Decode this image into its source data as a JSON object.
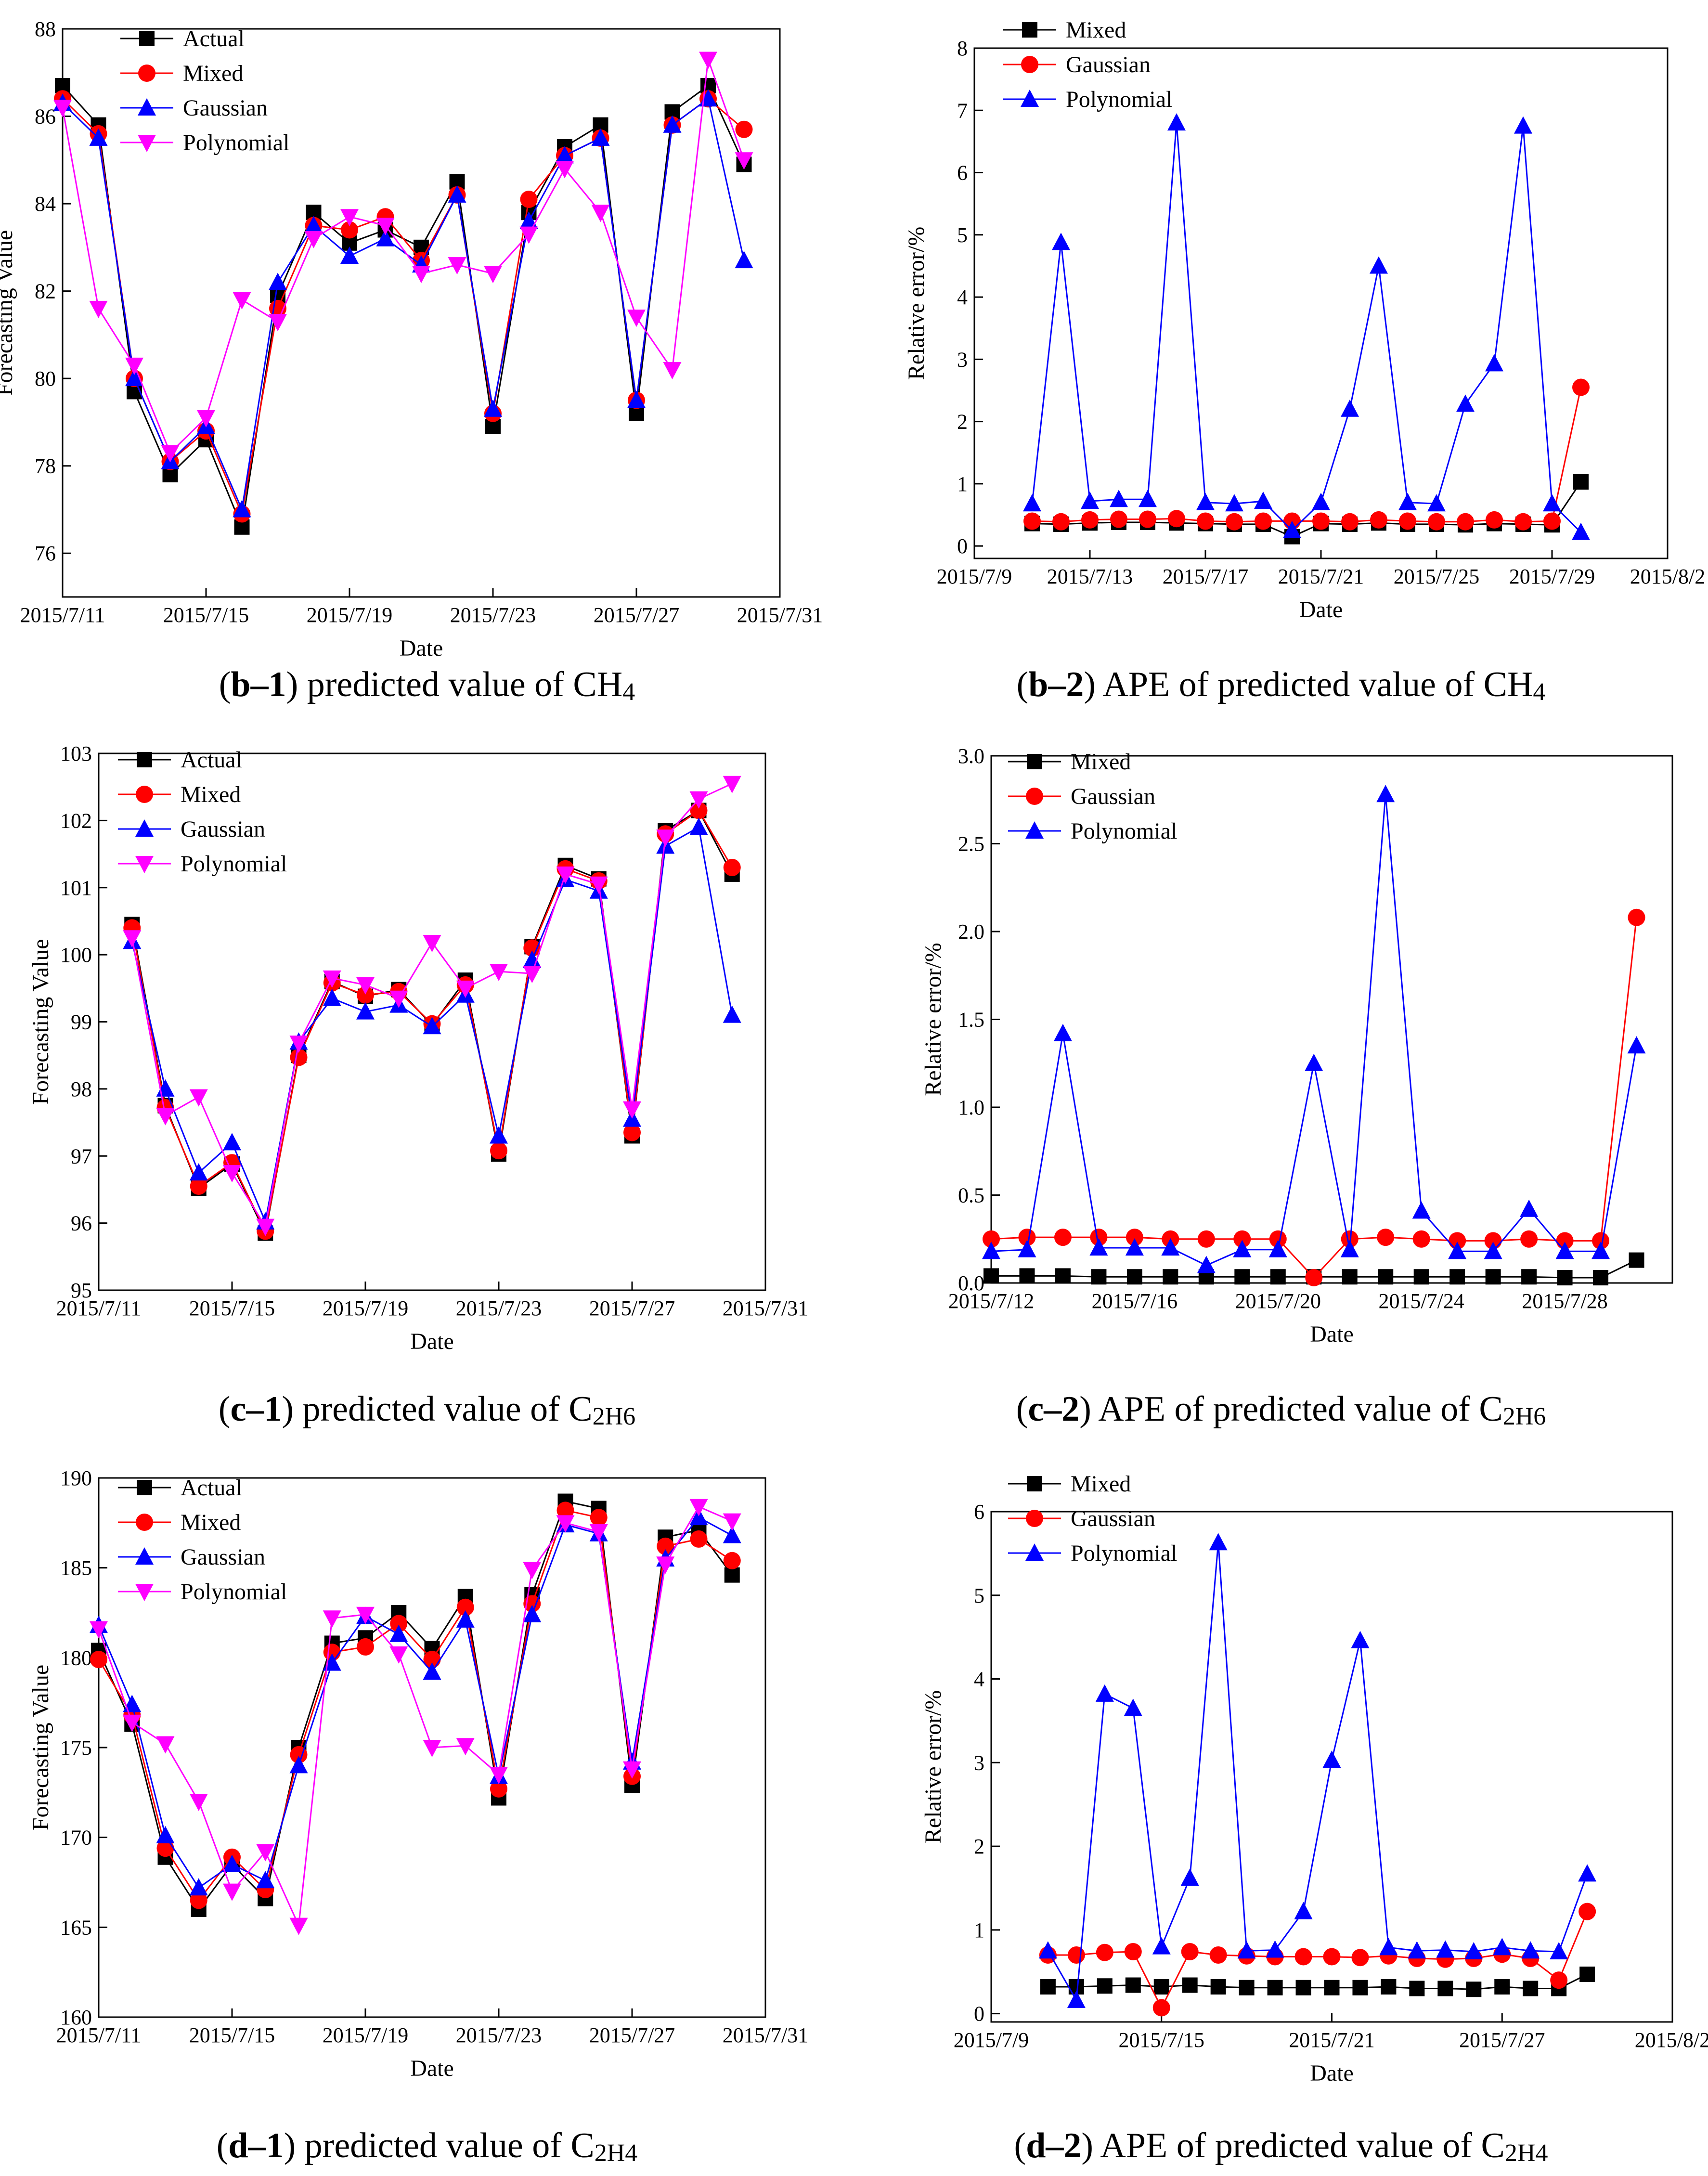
{
  "chart_data": [
    {
      "id": "b1",
      "type": "line",
      "caption_letter": "b–1",
      "caption_text": ") predicted value of CH",
      "caption_sub": "4",
      "xlabel": "Date",
      "ylabel": "Forecasting Value",
      "xlim": [
        "2015-07-11",
        "2015-07-31"
      ],
      "xticks": [
        "2015/7/11",
        "2015/7/15",
        "2015/7/19",
        "2015/7/23",
        "2015/7/27",
        "2015/7/31"
      ],
      "ylim": [
        75,
        88
      ],
      "yticks": [
        "76",
        "78",
        "80",
        "82",
        "84",
        "86",
        "88"
      ],
      "x": [
        "2015-07-11",
        "2015-07-12",
        "2015-07-13",
        "2015-07-14",
        "2015-07-15",
        "2015-07-16",
        "2015-07-17",
        "2015-07-18",
        "2015-07-19",
        "2015-07-20",
        "2015-07-21",
        "2015-07-22",
        "2015-07-23",
        "2015-07-24",
        "2015-07-25",
        "2015-07-26",
        "2015-07-27",
        "2015-07-28",
        "2015-07-29",
        "2015-07-30"
      ],
      "series": [
        {
          "name": "Actual",
          "color": "#000000",
          "marker": "square",
          "values": [
            86.7,
            85.8,
            79.7,
            77.8,
            78.6,
            76.6,
            81.9,
            83.8,
            83.1,
            83.4,
            83.0,
            84.5,
            78.9,
            83.8,
            85.3,
            85.8,
            79.2,
            86.1,
            86.7,
            84.9
          ]
        },
        {
          "name": "Mixed",
          "color": "#ff0000",
          "marker": "circle",
          "values": [
            86.4,
            85.6,
            80.0,
            78.1,
            78.8,
            76.9,
            81.6,
            83.5,
            83.4,
            83.7,
            82.7,
            84.2,
            79.2,
            84.1,
            85.1,
            85.5,
            79.5,
            85.8,
            86.4,
            85.7
          ]
        },
        {
          "name": "Gaussian",
          "color": "#0000ff",
          "marker": "triangle-up",
          "values": [
            86.3,
            85.5,
            80.0,
            78.1,
            78.9,
            77.0,
            82.2,
            83.5,
            82.8,
            83.2,
            82.6,
            84.2,
            79.3,
            83.6,
            85.1,
            85.5,
            79.5,
            85.8,
            86.4,
            82.7
          ]
        },
        {
          "name": "Polynomial",
          "color": "#ff00ff",
          "marker": "triangle-down",
          "values": [
            86.2,
            81.6,
            80.3,
            78.3,
            79.1,
            81.8,
            81.3,
            83.2,
            83.7,
            83.5,
            82.4,
            82.6,
            82.4,
            83.3,
            84.8,
            83.8,
            81.4,
            80.2,
            87.3,
            85.0
          ]
        }
      ],
      "legend_position": "top-left"
    },
    {
      "id": "b2",
      "type": "line",
      "caption_letter": "b–2",
      "caption_text": ") APE of predicted value of CH",
      "caption_sub": "4",
      "xlabel": "Date",
      "ylabel": "Relative error/%",
      "xlim": [
        "2015-07-09",
        "2015-08-02"
      ],
      "xticks": [
        "2015/7/9",
        "2015/7/13",
        "2015/7/17",
        "2015/7/21",
        "2015/7/25",
        "2015/7/29",
        "2015/8/2"
      ],
      "ylim": [
        -0.2,
        8
      ],
      "yticks": [
        "0",
        "1",
        "2",
        "3",
        "4",
        "5",
        "6",
        "7",
        "8"
      ],
      "x": [
        "2015-07-11",
        "2015-07-12",
        "2015-07-13",
        "2015-07-14",
        "2015-07-15",
        "2015-07-16",
        "2015-07-17",
        "2015-07-18",
        "2015-07-19",
        "2015-07-20",
        "2015-07-21",
        "2015-07-22",
        "2015-07-23",
        "2015-07-24",
        "2015-07-25",
        "2015-07-26",
        "2015-07-27",
        "2015-07-28",
        "2015-07-29",
        "2015-07-30"
      ],
      "series": [
        {
          "name": "Mixed",
          "color": "#000000",
          "marker": "square",
          "values": [
            0.36,
            0.35,
            0.37,
            0.38,
            0.38,
            0.37,
            0.36,
            0.35,
            0.35,
            0.15,
            0.36,
            0.35,
            0.37,
            0.35,
            0.35,
            0.34,
            0.36,
            0.35,
            0.34,
            1.03
          ]
        },
        {
          "name": "Gaussian",
          "color": "#ff0000",
          "marker": "circle",
          "values": [
            0.4,
            0.39,
            0.42,
            0.43,
            0.43,
            0.44,
            0.4,
            0.39,
            0.4,
            0.4,
            0.4,
            0.39,
            0.42,
            0.4,
            0.39,
            0.39,
            0.42,
            0.39,
            0.4,
            2.55
          ]
        },
        {
          "name": "Polynomial",
          "color": "#0000ff",
          "marker": "triangle-up",
          "values": [
            0.68,
            4.88,
            0.72,
            0.75,
            0.75,
            6.8,
            0.7,
            0.68,
            0.72,
            0.25,
            0.7,
            2.2,
            4.5,
            0.7,
            0.68,
            2.28,
            2.93,
            6.75,
            0.68,
            0.22
          ]
        }
      ],
      "legend_position": "top-left"
    },
    {
      "id": "c1",
      "type": "line",
      "caption_letter": "c–1",
      "caption_text": ") predicted value of C",
      "caption_sub": "2H6",
      "xlabel": "Date",
      "ylabel": "Forecasting Value",
      "xlim": [
        "2015-07-11",
        "2015-07-31"
      ],
      "xticks": [
        "2015/7/11",
        "2015/7/15",
        "2015/7/19",
        "2015/7/23",
        "2015/7/27",
        "2015/7/31"
      ],
      "ylim": [
        95,
        103
      ],
      "yticks": [
        "95",
        "96",
        "97",
        "98",
        "99",
        "100",
        "101",
        "102",
        "103"
      ],
      "x": [
        "2015-07-12",
        "2015-07-13",
        "2015-07-14",
        "2015-07-15",
        "2015-07-16",
        "2015-07-17",
        "2015-07-18",
        "2015-07-19",
        "2015-07-20",
        "2015-07-21",
        "2015-07-22",
        "2015-07-23",
        "2015-07-24",
        "2015-07-25",
        "2015-07-26",
        "2015-07-27",
        "2015-07-28",
        "2015-07-29",
        "2015-07-30"
      ],
      "series": [
        {
          "name": "Actual",
          "color": "#000000",
          "marker": "square",
          "values": [
            100.45,
            97.75,
            96.52,
            96.88,
            95.85,
            98.5,
            99.6,
            99.38,
            99.48,
            98.95,
            99.62,
            97.03,
            100.12,
            101.33,
            101.13,
            97.3,
            101.85,
            102.15,
            101.2
          ]
        },
        {
          "name": "Mixed",
          "color": "#ff0000",
          "marker": "circle",
          "values": [
            100.4,
            97.72,
            96.55,
            96.9,
            95.88,
            98.47,
            99.58,
            99.4,
            99.45,
            98.97,
            99.55,
            97.08,
            100.1,
            101.28,
            101.1,
            97.35,
            101.8,
            102.15,
            101.3
          ]
        },
        {
          "name": "Gaussian",
          "color": "#0000ff",
          "marker": "triangle-up",
          "values": [
            100.2,
            98.0,
            96.75,
            97.2,
            96.02,
            98.7,
            99.35,
            99.15,
            99.25,
            98.93,
            99.4,
            97.3,
            99.92,
            101.12,
            100.95,
            97.55,
            101.62,
            101.9,
            99.1
          ]
        },
        {
          "name": "Polynomial",
          "color": "#ff00ff",
          "marker": "triangle-down",
          "values": [
            100.25,
            97.6,
            97.88,
            96.75,
            95.95,
            98.68,
            99.65,
            99.55,
            99.35,
            100.18,
            99.5,
            99.75,
            99.72,
            101.2,
            101.05,
            97.7,
            101.75,
            102.32,
            102.55
          ]
        }
      ],
      "legend_position": "top-left"
    },
    {
      "id": "c2",
      "type": "line",
      "caption_letter": "c–2",
      "caption_text": ") APE of predicted value of C",
      "caption_sub": "2H6",
      "xlabel": "Date",
      "ylabel": "Relative error/%",
      "xlim": [
        "2015-07-12",
        "2015-07-31"
      ],
      "xticks": [
        "2015/7/12",
        "2015/7/16",
        "2015/7/20",
        "2015/7/24",
        "2015/7/28"
      ],
      "ylim": [
        0,
        3
      ],
      "yticks": [
        "0.0",
        "0.5",
        "1.0",
        "1.5",
        "2.0",
        "2.5",
        "3.0"
      ],
      "x": [
        "2015-07-12",
        "2015-07-13",
        "2015-07-14",
        "2015-07-15",
        "2015-07-16",
        "2015-07-17",
        "2015-07-18",
        "2015-07-19",
        "2015-07-20",
        "2015-07-21",
        "2015-07-22",
        "2015-07-23",
        "2015-07-24",
        "2015-07-25",
        "2015-07-26",
        "2015-07-27",
        "2015-07-28",
        "2015-07-29",
        "2015-07-30"
      ],
      "series": [
        {
          "name": "Mixed",
          "color": "#000000",
          "marker": "square",
          "values": [
            0.04,
            0.04,
            0.04,
            0.035,
            0.035,
            0.035,
            0.035,
            0.035,
            0.035,
            0.035,
            0.035,
            0.035,
            0.035,
            0.035,
            0.035,
            0.035,
            0.03,
            0.03,
            0.13
          ]
        },
        {
          "name": "Gaussian",
          "color": "#ff0000",
          "marker": "circle",
          "values": [
            0.25,
            0.26,
            0.26,
            0.26,
            0.26,
            0.25,
            0.25,
            0.25,
            0.25,
            0.03,
            0.25,
            0.26,
            0.25,
            0.24,
            0.24,
            0.25,
            0.24,
            0.24,
            2.08
          ]
        },
        {
          "name": "Polynomial",
          "color": "#0000ff",
          "marker": "triangle-up",
          "values": [
            0.18,
            0.19,
            1.42,
            0.2,
            0.2,
            0.2,
            0.1,
            0.19,
            0.19,
            1.25,
            0.19,
            2.78,
            0.41,
            0.18,
            0.18,
            0.42,
            0.18,
            0.18,
            1.35
          ]
        }
      ],
      "legend_position": "top-left"
    },
    {
      "id": "d1",
      "type": "line",
      "caption_letter": "d–1",
      "caption_text": ") predicted value of C",
      "caption_sub": "2H4",
      "xlabel": "Date",
      "ylabel": "Forecasting Value",
      "xlim": [
        "2015-07-11",
        "2015-07-31"
      ],
      "xticks": [
        "2015/7/11",
        "2015/7/15",
        "2015/7/19",
        "2015/7/23",
        "2015/7/27",
        "2015/7/31"
      ],
      "ylim": [
        160,
        190
      ],
      "yticks": [
        "160",
        "165",
        "170",
        "175",
        "180",
        "185",
        "190"
      ],
      "x": [
        "2015-07-11",
        "2015-07-12",
        "2015-07-13",
        "2015-07-14",
        "2015-07-15",
        "2015-07-16",
        "2015-07-17",
        "2015-07-18",
        "2015-07-19",
        "2015-07-20",
        "2015-07-21",
        "2015-07-22",
        "2015-07-23",
        "2015-07-24",
        "2015-07-25",
        "2015-07-26",
        "2015-07-27",
        "2015-07-28",
        "2015-07-29",
        "2015-07-30"
      ],
      "series": [
        {
          "name": "Actual",
          "color": "#000000",
          "marker": "square",
          "values": [
            180.4,
            176.3,
            168.9,
            166.0,
            168.5,
            166.6,
            175.0,
            180.8,
            181.1,
            182.5,
            180.5,
            183.4,
            172.2,
            183.5,
            188.7,
            188.3,
            172.9,
            186.7,
            187.1,
            184.6
          ]
        },
        {
          "name": "Mixed",
          "color": "#ff0000",
          "marker": "circle",
          "values": [
            179.9,
            176.8,
            169.4,
            166.5,
            168.9,
            167.1,
            174.6,
            180.3,
            180.6,
            181.9,
            179.9,
            182.8,
            172.7,
            183.0,
            188.2,
            187.8,
            173.4,
            186.2,
            186.6,
            185.4
          ]
        },
        {
          "name": "Gaussian",
          "color": "#0000ff",
          "marker": "triangle-up",
          "values": [
            181.8,
            177.4,
            170.1,
            167.2,
            168.5,
            167.6,
            174.0,
            179.7,
            182.3,
            181.3,
            179.2,
            182.1,
            173.4,
            182.4,
            187.4,
            186.9,
            174.2,
            185.5,
            187.8,
            186.8
          ]
        },
        {
          "name": "Polynomial",
          "color": "#ff00ff",
          "marker": "triangle-down",
          "values": [
            181.6,
            176.4,
            175.2,
            172.0,
            167.0,
            169.2,
            165.1,
            182.2,
            182.4,
            180.2,
            175.0,
            175.1,
            173.5,
            184.9,
            187.5,
            187.0,
            173.8,
            185.2,
            188.4,
            187.6
          ]
        }
      ],
      "legend_position": "top-left"
    },
    {
      "id": "d2",
      "type": "line",
      "caption_letter": "d–2",
      "caption_text": ") APE of predicted value of C",
      "caption_sub": "2H4",
      "xlabel": "Date",
      "ylabel": "Relative error/%",
      "xlim": [
        "2015-07-09",
        "2015-08-02"
      ],
      "xticks": [
        "2015/7/9",
        "2015/7/15",
        "2015/7/21",
        "2015/7/27",
        "2015/8/2"
      ],
      "ylim": [
        -0.1,
        6
      ],
      "yticks": [
        "0",
        "1",
        "2",
        "3",
        "4",
        "5",
        "6"
      ],
      "x": [
        "2015-07-11",
        "2015-07-12",
        "2015-07-13",
        "2015-07-14",
        "2015-07-15",
        "2015-07-16",
        "2015-07-17",
        "2015-07-18",
        "2015-07-19",
        "2015-07-20",
        "2015-07-21",
        "2015-07-22",
        "2015-07-23",
        "2015-07-24",
        "2015-07-25",
        "2015-07-26",
        "2015-07-27",
        "2015-07-28",
        "2015-07-29",
        "2015-07-30"
      ],
      "series": [
        {
          "name": "Mixed",
          "color": "#000000",
          "marker": "square",
          "values": [
            0.32,
            0.32,
            0.33,
            0.34,
            0.32,
            0.34,
            0.32,
            0.31,
            0.31,
            0.31,
            0.31,
            0.31,
            0.32,
            0.3,
            0.3,
            0.29,
            0.32,
            0.3,
            0.3,
            0.47
          ]
        },
        {
          "name": "Gaussian",
          "color": "#ff0000",
          "marker": "circle",
          "values": [
            0.7,
            0.7,
            0.73,
            0.74,
            0.07,
            0.74,
            0.7,
            0.69,
            0.68,
            0.68,
            0.68,
            0.67,
            0.69,
            0.66,
            0.65,
            0.66,
            0.71,
            0.66,
            0.4,
            1.22
          ]
        },
        {
          "name": "Polynomial",
          "color": "#0000ff",
          "marker": "triangle-up",
          "values": [
            0.75,
            0.16,
            3.82,
            3.65,
            0.8,
            1.62,
            5.63,
            0.75,
            0.76,
            1.22,
            3.03,
            4.46,
            0.79,
            0.75,
            0.76,
            0.74,
            0.79,
            0.75,
            0.74,
            1.67
          ]
        }
      ],
      "legend_position": "top-left"
    }
  ]
}
